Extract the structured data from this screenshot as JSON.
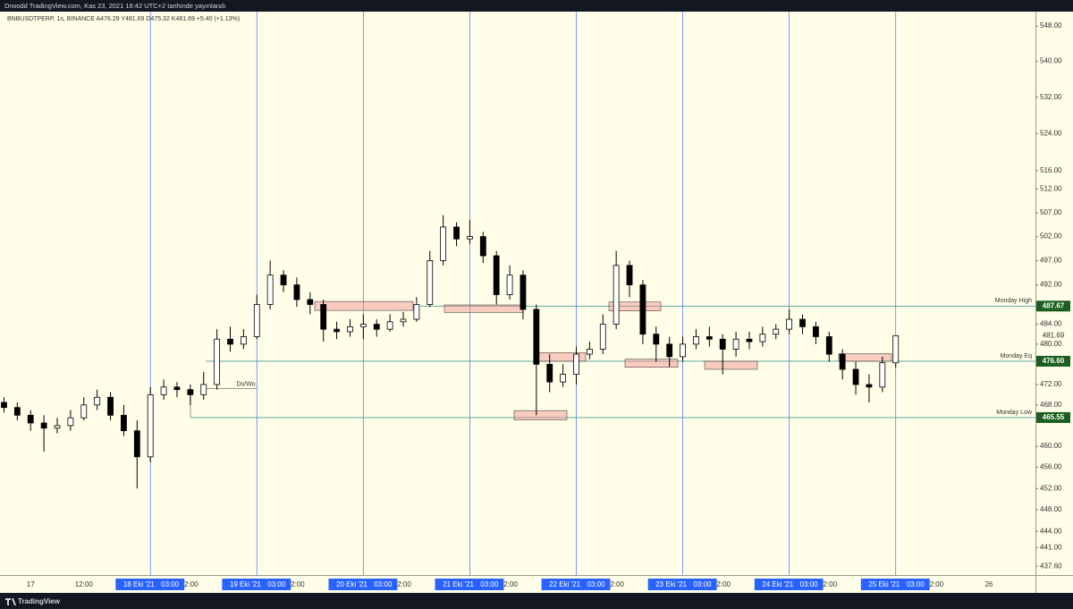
{
  "header": "Drwodd TradingView.com, Kas 23, 2021 18:42 UTC+2 tarihinde yayınlandı",
  "footer": "TradingView",
  "chart_data": {
    "type": "candlestick",
    "legend": "BNBUSDTPERP, 1s, BINANCE  A476.29 Y481.69 D475.32 K481.69 +5.40 (+1.13%)",
    "log_scale": true,
    "ylim": [
      436,
      551.3
    ],
    "xlim": [
      -0.3,
      77.5
    ],
    "up_color": "#ffffff",
    "down_color": "#000000",
    "open": [
      468.5,
      467.5,
      466,
      464.5,
      463.5,
      464,
      465.5,
      468,
      469.5,
      466,
      463,
      458,
      470,
      471.5,
      471,
      470,
      472,
      481,
      480,
      481.5,
      488,
      494,
      492,
      489,
      488,
      483,
      482.5,
      483.5,
      484,
      483,
      484.5,
      485,
      488,
      497,
      504,
      501.5,
      502,
      498,
      490,
      494,
      487,
      476,
      472.5,
      474,
      478,
      479,
      484,
      496,
      492,
      482,
      480,
      477.5,
      480,
      481.5,
      481,
      479,
      481,
      480.5,
      482,
      483,
      485,
      483.5,
      481.5,
      478,
      475,
      472,
      471.5,
      476.29
    ],
    "high": [
      469.5,
      468.5,
      467,
      466,
      465.5,
      467,
      469.5,
      471,
      470.5,
      468,
      465,
      471.5,
      473,
      472.5,
      472,
      474.5,
      483,
      483.5,
      483,
      490,
      497,
      495,
      493.5,
      490.5,
      489,
      484.5,
      485,
      486,
      485,
      486,
      486.5,
      489.5,
      499,
      506.5,
      505,
      505.5,
      503,
      499,
      496,
      495,
      488,
      478,
      476,
      479.5,
      480.5,
      486,
      499,
      497,
      493,
      483.5,
      481.5,
      481.5,
      483,
      483.5,
      482,
      482.5,
      482.5,
      483.5,
      484,
      487,
      486,
      484.5,
      482.5,
      479,
      476.5,
      474,
      477.5,
      481.69
    ],
    "low": [
      466.5,
      465,
      463,
      459,
      462.5,
      463,
      465,
      467,
      465,
      462,
      452,
      457,
      469,
      469.5,
      468,
      469,
      471,
      478.5,
      479,
      481,
      487,
      490.5,
      487.5,
      486,
      480.5,
      481,
      481.5,
      481,
      481.5,
      482.5,
      483.5,
      484.5,
      487.5,
      496,
      500,
      500.5,
      496.5,
      488,
      489,
      485,
      466,
      470.5,
      471.5,
      472,
      477,
      478,
      483,
      489.5,
      480,
      476.5,
      475.5,
      476.5,
      479,
      479.5,
      474,
      477.5,
      479,
      479.5,
      481,
      482,
      482,
      480,
      476.5,
      473,
      470,
      468.5,
      470.5,
      475.32
    ],
    "close": [
      467.5,
      466,
      464.5,
      463.5,
      464,
      465.5,
      468,
      469.5,
      466,
      463,
      458,
      470,
      471.5,
      471,
      470,
      472,
      481,
      480,
      481.5,
      488,
      494,
      492,
      489,
      488,
      483,
      482.5,
      483.5,
      484,
      483,
      484.5,
      485,
      488,
      497,
      504,
      501.5,
      502,
      498,
      490,
      494,
      487,
      476,
      472.5,
      474,
      478,
      479,
      484,
      496,
      492,
      482,
      480,
      477.5,
      480,
      481.5,
      481,
      479,
      481,
      480.5,
      482,
      483,
      485,
      483.5,
      481.5,
      478,
      475,
      472,
      471.5,
      476.29,
      481.69
    ],
    "yticks": [
      {
        "value": 548,
        "label": "548.00"
      },
      {
        "value": 540,
        "label": "540.00"
      },
      {
        "value": 532,
        "label": "532.00"
      },
      {
        "value": 524,
        "label": "524.00"
      },
      {
        "value": 516,
        "label": "516.00"
      },
      {
        "value": 512,
        "label": "512.00"
      },
      {
        "value": 507,
        "label": "507.00"
      },
      {
        "value": 502,
        "label": "502.00"
      },
      {
        "value": 497,
        "label": "497.00"
      },
      {
        "value": 492,
        "label": "492.00"
      },
      {
        "value": 484,
        "label": "484.00"
      },
      {
        "value": 480,
        "label": "480.00"
      },
      {
        "value": 472,
        "label": "472.00"
      },
      {
        "value": 468,
        "label": "468.00"
      },
      {
        "value": 460,
        "label": "460.00"
      },
      {
        "value": 456,
        "label": "456.00"
      },
      {
        "value": 452,
        "label": "452.00"
      },
      {
        "value": 448,
        "label": "448.00"
      },
      {
        "value": 444,
        "label": "444.00"
      },
      {
        "value": 441,
        "label": "441.00"
      },
      {
        "value": 437.6,
        "label": "437.60"
      }
    ],
    "xticks": [
      {
        "value": 2,
        "label": "17"
      },
      {
        "value": 6,
        "label": "12:00"
      },
      {
        "value": 74,
        "label": "26"
      }
    ],
    "sessions": [
      {
        "date": {
          "value": 10,
          "label": "18 Eki '21"
        },
        "open": {
          "value": 11,
          "label": "03:00"
        },
        "noon": {
          "value": 14,
          "label": "2:00"
        }
      },
      {
        "date": {
          "value": 18,
          "label": "19 Eki '21"
        },
        "open": {
          "value": 19,
          "label": "03:00"
        },
        "noon": {
          "value": 22,
          "label": "2:00"
        }
      },
      {
        "date": {
          "value": 26,
          "label": "20 Eki '21"
        },
        "open": {
          "value": 27,
          "label": "03:00"
        },
        "noon": {
          "value": 30,
          "label": "2:00"
        }
      },
      {
        "date": {
          "value": 34,
          "label": "21 Eki '21"
        },
        "open": {
          "value": 35,
          "label": "03:00"
        },
        "noon": {
          "value": 38,
          "label": "2:00"
        }
      },
      {
        "date": {
          "value": 42,
          "label": "22 Eki '21"
        },
        "open": {
          "value": 43,
          "label": "03:00"
        },
        "noon": {
          "value": 46,
          "label": "2:00"
        }
      },
      {
        "date": {
          "value": 50,
          "label": "23 Eki '21"
        },
        "open": {
          "value": 51,
          "label": "03:00"
        },
        "noon": {
          "value": 54,
          "label": "2:00"
        }
      },
      {
        "date": {
          "value": 58,
          "label": "24 Eki '21"
        },
        "open": {
          "value": 59,
          "label": "03:00"
        },
        "noon": {
          "value": 62,
          "label": "2:00"
        }
      },
      {
        "date": {
          "value": 66,
          "label": "25 Eki '21"
        },
        "open": {
          "value": 67,
          "label": "03:00"
        },
        "noon": {
          "value": 70,
          "label": "2:00"
        }
      }
    ],
    "levels": [
      {
        "name": "Monday High",
        "value": 487.67,
        "label": "487.67"
      },
      {
        "name": "Monday Eq",
        "value": 476.6,
        "label": "476.60"
      },
      {
        "name": "Monday Low",
        "value": 465.55,
        "label": "465.55"
      },
      {
        "name": "Do/Wo",
        "value": 471.2
      }
    ],
    "last_price": {
      "value": 481.69,
      "label": "481.69"
    },
    "zones": [
      {
        "top": 488.6,
        "bottom": 486.8
      },
      {
        "top": 487.9,
        "bottom": 486.4
      },
      {
        "top": 478.3,
        "bottom": 476.6
      },
      {
        "top": 466.9,
        "bottom": 465.1
      },
      {
        "top": 488.5,
        "bottom": 486.7
      },
      {
        "top": 477.0,
        "bottom": 475.4
      },
      {
        "top": 476.6,
        "bottom": 475.0
      },
      {
        "top": 478.1,
        "bottom": 476.6
      }
    ]
  }
}
